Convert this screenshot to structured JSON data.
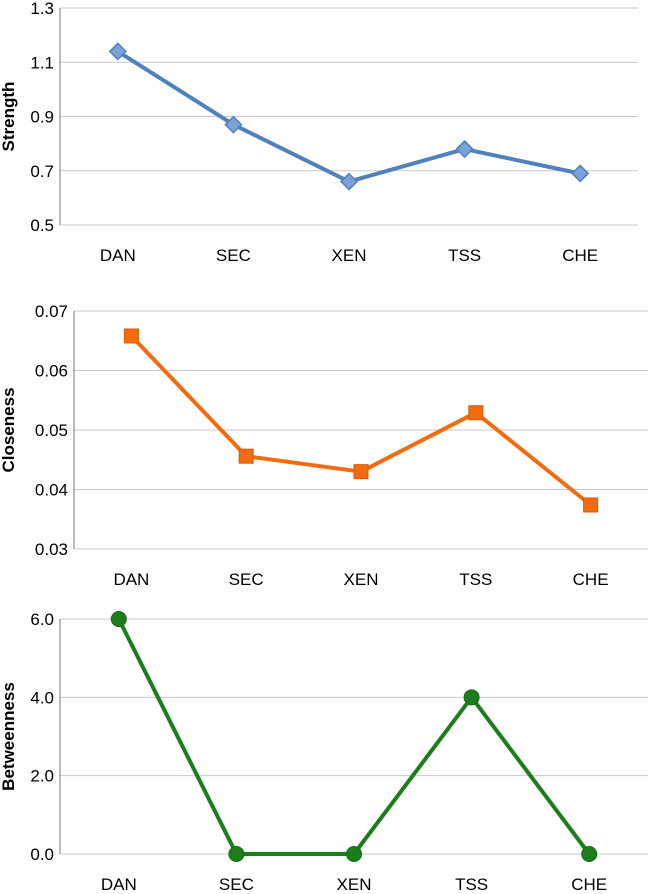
{
  "chart_data": [
    {
      "type": "line",
      "categories": [
        "DAN",
        "SEC",
        "XEN",
        "TSS",
        "CHE"
      ],
      "series": [
        {
          "values": [
            1.14,
            0.87,
            0.66,
            0.78,
            0.69
          ]
        }
      ],
      "ylabel": "Strength",
      "ylim": [
        0.5,
        1.3
      ],
      "yticks": [
        "0.5",
        "0.7",
        "0.9",
        "1.1",
        "1.3"
      ],
      "grid": true,
      "color": "#4f81bd",
      "marker": "diamond"
    },
    {
      "type": "line",
      "categories": [
        "DAN",
        "SEC",
        "XEN",
        "TSS",
        "CHE"
      ],
      "series": [
        {
          "values": [
            0.0658,
            0.0456,
            0.043,
            0.0529,
            0.0374
          ]
        }
      ],
      "ylabel": "Closeness",
      "ylim": [
        0.03,
        0.07
      ],
      "yticks": [
        "0.03",
        "0.04",
        "0.05",
        "0.06",
        "0.07"
      ],
      "grid": true,
      "color": "#f26b0f",
      "marker": "square"
    },
    {
      "type": "line",
      "categories": [
        "DAN",
        "SEC",
        "XEN",
        "TSS",
        "CHE"
      ],
      "series": [
        {
          "values": [
            6.0,
            0.0,
            0.0,
            4.0,
            0.0
          ]
        }
      ],
      "ylabel": "Betweenness",
      "ylim": [
        0.0,
        6.0
      ],
      "yticks": [
        "0.0",
        "2.0",
        "4.0",
        "6.0"
      ],
      "grid": true,
      "color": "#1a7f1a",
      "marker": "circle"
    }
  ]
}
